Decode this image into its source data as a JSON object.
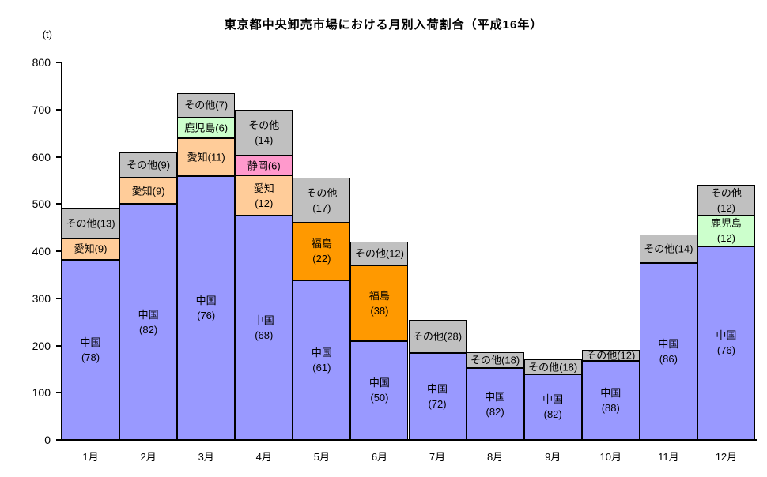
{
  "title": "東京都中央卸売市場における月別入荷割合（平成16年）",
  "y_axis_unit": "(t)",
  "chart_data": {
    "type": "bar",
    "subtype": "stacked",
    "title": "東京都中央卸売市場における月別入荷割合（平成16年）",
    "ylabel": "(t)",
    "ylim": [
      0,
      800
    ],
    "y_tick_interval": 100,
    "y_ticks": [
      0,
      100,
      200,
      300,
      400,
      500,
      600,
      700,
      800
    ],
    "grid": false,
    "legend": "none",
    "categories": [
      "1月",
      "2月",
      "3月",
      "4月",
      "5月",
      "6月",
      "7月",
      "8月",
      "9月",
      "10月",
      "11月",
      "12月"
    ],
    "totals": [
      490,
      610,
      735,
      700,
      555,
      420,
      255,
      185,
      170,
      190,
      435,
      540
    ],
    "region_colors": {
      "中国": "#9999FF",
      "愛知": "#FFCC99",
      "福島": "#FF9900",
      "静岡": "#FF99CC",
      "鹿児島": "#CCFFCC",
      "その他": "#C0C0C0"
    },
    "bars": [
      {
        "month": "1月",
        "total": 490,
        "segments": [
          {
            "region": "中国",
            "percent": 78,
            "label_lines": [
              "中国",
              "(78)"
            ]
          },
          {
            "region": "愛知",
            "percent": 9,
            "label_lines": [
              "愛知(9)"
            ]
          },
          {
            "region": "その他",
            "percent": 13,
            "label_lines": [
              "その他(13)"
            ]
          }
        ]
      },
      {
        "month": "2月",
        "total": 610,
        "segments": [
          {
            "region": "中国",
            "percent": 82,
            "label_lines": [
              "中国",
              "(82)"
            ]
          },
          {
            "region": "愛知",
            "percent": 9,
            "label_lines": [
              "愛知(9)"
            ]
          },
          {
            "region": "その他",
            "percent": 9,
            "label_lines": [
              "その他(9)"
            ]
          }
        ]
      },
      {
        "month": "3月",
        "total": 735,
        "segments": [
          {
            "region": "中国",
            "percent": 76,
            "label_lines": [
              "中国",
              "(76)"
            ]
          },
          {
            "region": "愛知",
            "percent": 11,
            "label_lines": [
              "愛知(11)"
            ]
          },
          {
            "region": "鹿児島",
            "percent": 6,
            "label_lines": [
              "鹿児島(6)"
            ]
          },
          {
            "region": "その他",
            "percent": 7,
            "label_lines": [
              "その他(7)"
            ]
          }
        ]
      },
      {
        "month": "4月",
        "total": 700,
        "segments": [
          {
            "region": "中国",
            "percent": 68,
            "label_lines": [
              "中国",
              "(68)"
            ]
          },
          {
            "region": "愛知",
            "percent": 12,
            "label_lines": [
              "愛知",
              "(12)"
            ]
          },
          {
            "region": "静岡",
            "percent": 6,
            "label_lines": [
              "静岡(6)"
            ]
          },
          {
            "region": "その他",
            "percent": 14,
            "label_lines": [
              "その他",
              "(14)"
            ]
          }
        ]
      },
      {
        "month": "5月",
        "total": 555,
        "segments": [
          {
            "region": "中国",
            "percent": 61,
            "label_lines": [
              "中国",
              "(61)"
            ]
          },
          {
            "region": "福島",
            "percent": 22,
            "label_lines": [
              "福島",
              "(22)"
            ]
          },
          {
            "region": "その他",
            "percent": 17,
            "label_lines": [
              "その他",
              "(17)"
            ]
          }
        ]
      },
      {
        "month": "6月",
        "total": 420,
        "segments": [
          {
            "region": "中国",
            "percent": 50,
            "label_lines": [
              "中国",
              "(50)"
            ]
          },
          {
            "region": "福島",
            "percent": 38,
            "label_lines": [
              "福島",
              "(38)"
            ]
          },
          {
            "region": "その他",
            "percent": 12,
            "label_lines": [
              "その他(12)"
            ]
          }
        ]
      },
      {
        "month": "7月",
        "total": 255,
        "segments": [
          {
            "region": "中国",
            "percent": 72,
            "label_lines": [
              "中国",
              "(72)"
            ]
          },
          {
            "region": "その他",
            "percent": 28,
            "label_lines": [
              "その他(28)"
            ]
          }
        ]
      },
      {
        "month": "8月",
        "total": 185,
        "segments": [
          {
            "region": "中国",
            "percent": 82,
            "label_lines": [
              "中国",
              "(82)"
            ]
          },
          {
            "region": "その他",
            "percent": 18,
            "label_lines": [
              "その他(18)"
            ]
          }
        ]
      },
      {
        "month": "9月",
        "total": 170,
        "segments": [
          {
            "region": "中国",
            "percent": 82,
            "label_lines": [
              "中国",
              "(82)"
            ]
          },
          {
            "region": "その他",
            "percent": 18,
            "label_lines": [
              "その他(18)"
            ]
          }
        ]
      },
      {
        "month": "10月",
        "total": 190,
        "segments": [
          {
            "region": "中国",
            "percent": 88,
            "label_lines": [
              "中国",
              "(88)"
            ]
          },
          {
            "region": "その他",
            "percent": 12,
            "label_lines": [
              "その他(12)"
            ]
          }
        ]
      },
      {
        "month": "11月",
        "total": 435,
        "segments": [
          {
            "region": "中国",
            "percent": 86,
            "label_lines": [
              "中国",
              "(86)"
            ]
          },
          {
            "region": "その他",
            "percent": 14,
            "label_lines": [
              "その他(14)"
            ]
          }
        ]
      },
      {
        "month": "12月",
        "total": 540,
        "segments": [
          {
            "region": "中国",
            "percent": 76,
            "label_lines": [
              "中国",
              "(76)"
            ]
          },
          {
            "region": "鹿児島",
            "percent": 12,
            "label_lines": [
              "鹿児島",
              "(12)"
            ]
          },
          {
            "region": "その他",
            "percent": 12,
            "label_lines": [
              "その他",
              "(12)"
            ]
          }
        ]
      }
    ]
  }
}
